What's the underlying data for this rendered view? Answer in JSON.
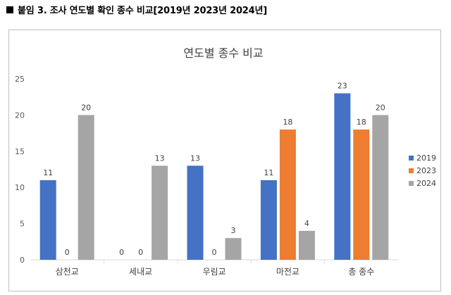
{
  "caption": "붙임 3. 조사 연도별 확인 종수 비교[2019년 2023년 2024년]",
  "chart_data": {
    "type": "bar",
    "title": "연도별 종수 비교",
    "xlabel": "",
    "ylabel": "",
    "categories": [
      "삼천교",
      "세내교",
      "우림교",
      "마전교",
      "총 종수"
    ],
    "series": [
      {
        "name": "2019",
        "color": "#4472c4",
        "values": [
          11,
          0,
          13,
          11,
          23
        ]
      },
      {
        "name": "2023",
        "color": "#ed7d31",
        "values": [
          0,
          0,
          0,
          18,
          18
        ]
      },
      {
        "name": "2024",
        "color": "#a5a5a5",
        "values": [
          20,
          13,
          3,
          4,
          20
        ]
      }
    ],
    "ylim": [
      0,
      25
    ],
    "yticks": [
      0,
      5,
      10,
      15,
      20,
      25
    ],
    "grid": false,
    "legend": "right"
  }
}
